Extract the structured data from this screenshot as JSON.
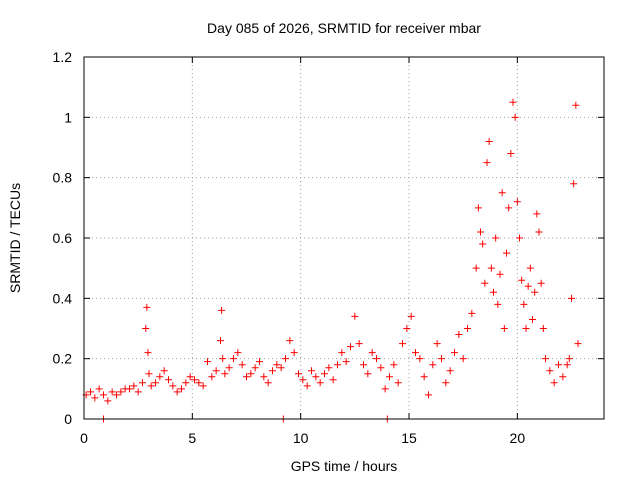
{
  "chart_data": {
    "type": "scatter",
    "title": "Day 085 of 2026, SRMTID for receiver mbar",
    "xlabel": "GPS time / hours",
    "ylabel": "SRMTID / TECUs",
    "xlim": [
      0,
      24
    ],
    "ylim": [
      0,
      1.2
    ],
    "xticks": [
      0,
      5,
      10,
      15,
      20
    ],
    "xtick_labels": [
      "0",
      "5",
      "10",
      "15",
      "20"
    ],
    "yticks": [
      0,
      0.2,
      0.4,
      0.6,
      0.8,
      1,
      1.2
    ],
    "ytick_labels": [
      "0",
      "0.2",
      "0.4",
      "0.6",
      "0.8",
      "1",
      "1.2"
    ],
    "grid": true,
    "marker": "+",
    "color": "#ff0000",
    "series": [
      {
        "name": "SRMTID",
        "x": [
          0.1,
          0.3,
          0.5,
          0.7,
          0.9,
          1.1,
          1.3,
          1.5,
          1.7,
          1.9,
          2.1,
          2.3,
          2.5,
          2.7,
          2.85,
          2.9,
          2.95,
          3.0,
          3.1,
          3.3,
          3.5,
          3.7,
          3.9,
          4.1,
          4.3,
          4.5,
          4.7,
          4.9,
          5.1,
          5.3,
          5.5,
          5.7,
          5.9,
          6.1,
          6.3,
          6.35,
          6.4,
          6.5,
          6.7,
          6.9,
          7.1,
          7.3,
          7.5,
          7.7,
          7.9,
          8.1,
          8.3,
          8.5,
          8.7,
          8.9,
          9.1,
          9.3,
          9.5,
          9.7,
          9.9,
          10.1,
          10.3,
          10.5,
          10.7,
          10.9,
          11.1,
          11.3,
          11.5,
          11.7,
          11.9,
          12.1,
          12.3,
          12.5,
          12.7,
          12.9,
          13.1,
          13.3,
          13.5,
          13.7,
          13.9,
          14.1,
          14.3,
          14.5,
          14.7,
          14.9,
          15.1,
          15.3,
          15.5,
          15.7,
          15.9,
          16.1,
          16.3,
          16.5,
          16.7,
          16.9,
          17.1,
          17.3,
          17.5,
          17.7,
          17.9,
          18.1,
          18.2,
          18.3,
          18.4,
          18.5,
          18.6,
          18.7,
          18.8,
          18.9,
          19.0,
          19.1,
          19.2,
          19.3,
          19.4,
          19.5,
          19.6,
          19.7,
          19.8,
          19.9,
          20.0,
          20.1,
          20.2,
          20.3,
          20.4,
          20.5,
          20.6,
          20.7,
          20.8,
          20.9,
          21.0,
          21.1,
          21.2,
          21.3,
          21.5,
          21.7,
          21.9,
          22.1,
          22.3,
          22.4,
          22.5,
          22.6,
          22.7,
          22.8,
          0.9,
          9.2,
          14.0
        ],
        "y": [
          0.08,
          0.09,
          0.07,
          0.1,
          0.08,
          0.06,
          0.09,
          0.08,
          0.09,
          0.1,
          0.1,
          0.11,
          0.09,
          0.12,
          0.3,
          0.37,
          0.22,
          0.15,
          0.11,
          0.12,
          0.14,
          0.16,
          0.13,
          0.11,
          0.09,
          0.1,
          0.12,
          0.14,
          0.13,
          0.12,
          0.11,
          0.19,
          0.14,
          0.16,
          0.26,
          0.36,
          0.2,
          0.15,
          0.17,
          0.2,
          0.22,
          0.18,
          0.14,
          0.15,
          0.17,
          0.19,
          0.14,
          0.12,
          0.16,
          0.18,
          0.17,
          0.2,
          0.26,
          0.22,
          0.15,
          0.13,
          0.11,
          0.16,
          0.14,
          0.12,
          0.15,
          0.17,
          0.13,
          0.18,
          0.22,
          0.19,
          0.24,
          0.34,
          0.25,
          0.18,
          0.15,
          0.22,
          0.2,
          0.17,
          0.1,
          0.14,
          0.18,
          0.12,
          0.25,
          0.3,
          0.34,
          0.22,
          0.2,
          0.14,
          0.08,
          0.18,
          0.25,
          0.2,
          0.12,
          0.16,
          0.22,
          0.28,
          0.2,
          0.3,
          0.35,
          0.5,
          0.7,
          0.62,
          0.58,
          0.45,
          0.85,
          0.92,
          0.5,
          0.42,
          0.6,
          0.38,
          0.48,
          0.75,
          0.3,
          0.55,
          0.7,
          0.88,
          1.05,
          1.0,
          0.72,
          0.6,
          0.46,
          0.38,
          0.3,
          0.44,
          0.5,
          0.33,
          0.42,
          0.68,
          0.62,
          0.45,
          0.3,
          0.2,
          0.16,
          0.12,
          0.18,
          0.14,
          0.18,
          0.2,
          0.4,
          0.78,
          1.04,
          0.25,
          0.0,
          0.0,
          0.0
        ]
      }
    ]
  }
}
